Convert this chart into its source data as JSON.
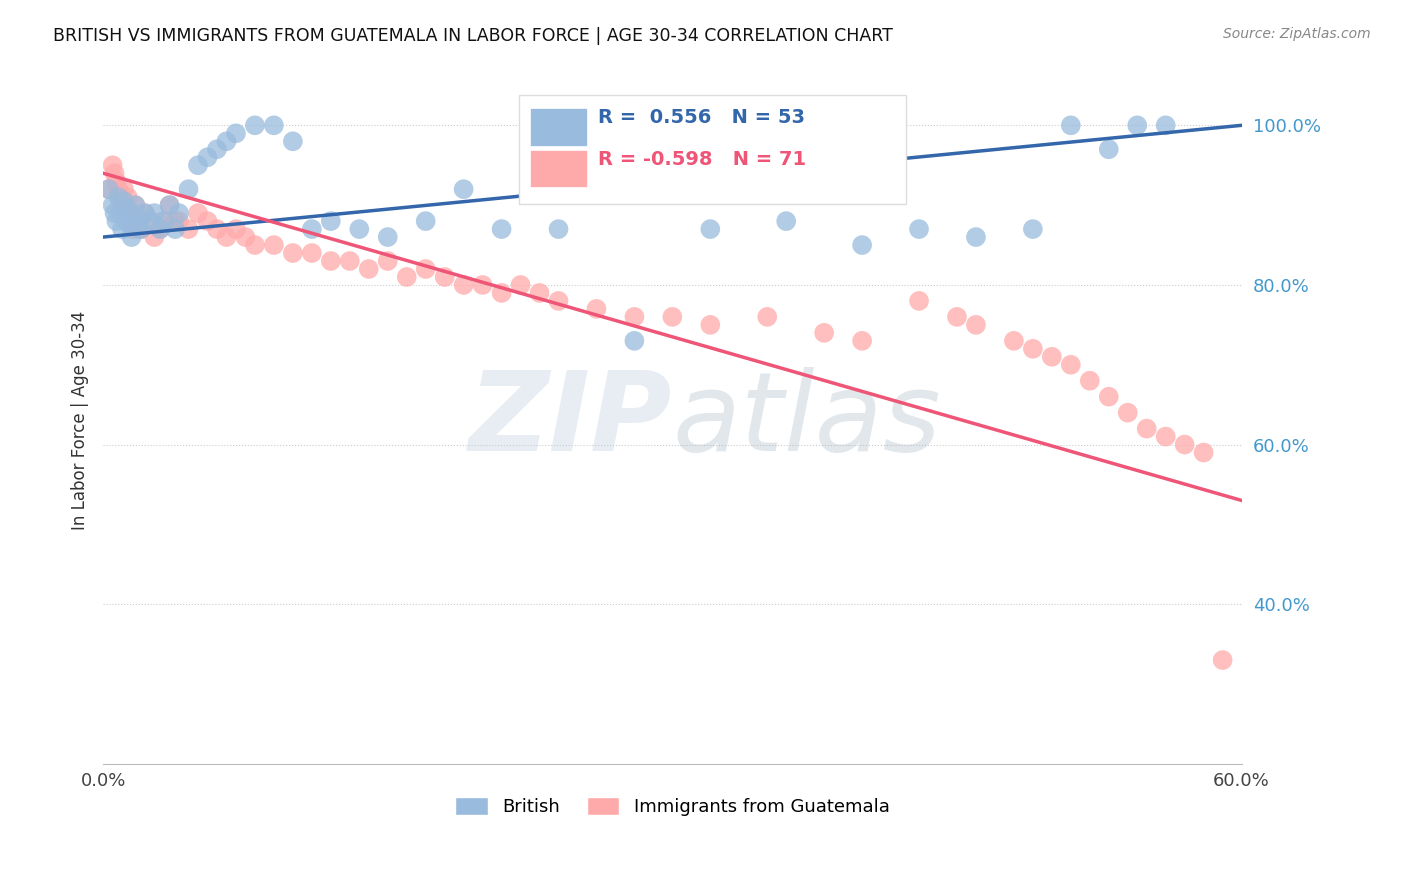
{
  "title": "BRITISH VS IMMIGRANTS FROM GUATEMALA IN LABOR FORCE | AGE 30-34 CORRELATION CHART",
  "source": "Source: ZipAtlas.com",
  "ylabel": "In Labor Force | Age 30-34",
  "xlim": [
    0.0,
    0.6
  ],
  "ylim": [
    0.2,
    1.06
  ],
  "xticks": [
    0.0,
    0.1,
    0.2,
    0.3,
    0.4,
    0.5,
    0.6
  ],
  "xticklabels": [
    "0.0%",
    "",
    "",
    "",
    "",
    "",
    "60.0%"
  ],
  "yticks_right": [
    0.4,
    0.6,
    0.8,
    1.0
  ],
  "yticklabels_right": [
    "40.0%",
    "60.0%",
    "80.0%",
    "100.0%"
  ],
  "blue_R": 0.556,
  "blue_N": 53,
  "pink_R": -0.598,
  "pink_N": 71,
  "blue_color": "#99BBDD",
  "pink_color": "#FFAAAA",
  "blue_line_color": "#3366AA",
  "pink_line_color": "#EE5577",
  "legend_blue_label": "British",
  "legend_pink_label": "Immigrants from Guatemala",
  "blue_scatter_x": [
    0.003,
    0.005,
    0.006,
    0.007,
    0.008,
    0.009,
    0.01,
    0.011,
    0.012,
    0.013,
    0.014,
    0.015,
    0.016,
    0.017,
    0.018,
    0.019,
    0.02,
    0.022,
    0.025,
    0.027,
    0.03,
    0.032,
    0.035,
    0.038,
    0.04,
    0.045,
    0.05,
    0.055,
    0.06,
    0.065,
    0.07,
    0.08,
    0.09,
    0.1,
    0.11,
    0.12,
    0.135,
    0.15,
    0.17,
    0.19,
    0.21,
    0.24,
    0.28,
    0.32,
    0.36,
    0.4,
    0.43,
    0.46,
    0.49,
    0.51,
    0.53,
    0.545,
    0.56
  ],
  "blue_scatter_y": [
    0.92,
    0.9,
    0.89,
    0.88,
    0.91,
    0.89,
    0.87,
    0.905,
    0.88,
    0.895,
    0.875,
    0.86,
    0.88,
    0.9,
    0.885,
    0.875,
    0.87,
    0.89,
    0.88,
    0.89,
    0.87,
    0.88,
    0.9,
    0.87,
    0.89,
    0.92,
    0.95,
    0.96,
    0.97,
    0.98,
    0.99,
    1.0,
    1.0,
    0.98,
    0.87,
    0.88,
    0.87,
    0.86,
    0.88,
    0.92,
    0.87,
    0.87,
    0.73,
    0.87,
    0.88,
    0.85,
    0.87,
    0.86,
    0.87,
    1.0,
    0.97,
    1.0,
    1.0
  ],
  "pink_scatter_x": [
    0.003,
    0.005,
    0.006,
    0.007,
    0.008,
    0.009,
    0.01,
    0.011,
    0.012,
    0.013,
    0.014,
    0.015,
    0.016,
    0.017,
    0.018,
    0.019,
    0.02,
    0.022,
    0.025,
    0.027,
    0.03,
    0.032,
    0.035,
    0.038,
    0.04,
    0.045,
    0.05,
    0.055,
    0.06,
    0.065,
    0.07,
    0.075,
    0.08,
    0.09,
    0.1,
    0.11,
    0.12,
    0.13,
    0.14,
    0.15,
    0.16,
    0.17,
    0.18,
    0.19,
    0.2,
    0.21,
    0.22,
    0.23,
    0.24,
    0.26,
    0.28,
    0.3,
    0.32,
    0.35,
    0.38,
    0.4,
    0.43,
    0.45,
    0.46,
    0.48,
    0.49,
    0.5,
    0.51,
    0.52,
    0.53,
    0.54,
    0.55,
    0.56,
    0.57,
    0.58,
    0.59
  ],
  "pink_scatter_y": [
    0.92,
    0.95,
    0.94,
    0.93,
    0.92,
    0.91,
    0.9,
    0.92,
    0.89,
    0.91,
    0.88,
    0.89,
    0.87,
    0.9,
    0.88,
    0.87,
    0.87,
    0.89,
    0.88,
    0.86,
    0.87,
    0.88,
    0.9,
    0.88,
    0.88,
    0.87,
    0.89,
    0.88,
    0.87,
    0.86,
    0.87,
    0.86,
    0.85,
    0.85,
    0.84,
    0.84,
    0.83,
    0.83,
    0.82,
    0.83,
    0.81,
    0.82,
    0.81,
    0.8,
    0.8,
    0.79,
    0.8,
    0.79,
    0.78,
    0.77,
    0.76,
    0.76,
    0.75,
    0.76,
    0.74,
    0.73,
    0.78,
    0.76,
    0.75,
    0.73,
    0.72,
    0.71,
    0.7,
    0.68,
    0.66,
    0.64,
    0.62,
    0.61,
    0.6,
    0.59,
    0.33
  ],
  "blue_line_x0": 0.0,
  "blue_line_x1": 0.6,
  "blue_line_y0": 0.86,
  "blue_line_y1": 1.0,
  "pink_line_x0": 0.0,
  "pink_line_x1": 0.6,
  "pink_line_y0": 0.94,
  "pink_line_y1": 0.53
}
